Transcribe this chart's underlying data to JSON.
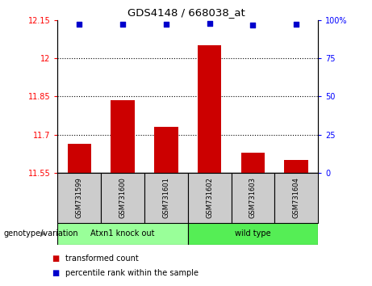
{
  "title": "GDS4148 / 668038_at",
  "samples": [
    "GSM731599",
    "GSM731600",
    "GSM731601",
    "GSM731602",
    "GSM731603",
    "GSM731604"
  ],
  "bar_values": [
    11.665,
    11.835,
    11.73,
    12.05,
    11.63,
    11.6
  ],
  "scatter_values": [
    97,
    97.5,
    97,
    98,
    96.5,
    97
  ],
  "ylim_left": [
    11.55,
    12.15
  ],
  "ylim_right": [
    0,
    100
  ],
  "yticks_left": [
    11.55,
    11.7,
    11.85,
    12.0,
    12.15
  ],
  "yticks_right": [
    0,
    25,
    50,
    75,
    100
  ],
  "ytick_labels_left": [
    "11.55",
    "11.7",
    "11.85",
    "12",
    "12.15"
  ],
  "ytick_labels_right": [
    "0",
    "25",
    "50",
    "75",
    "100%"
  ],
  "hlines": [
    11.7,
    11.85,
    12.0
  ],
  "bar_color": "#cc0000",
  "scatter_color": "#0000cc",
  "group1_label": "Atxn1 knock out",
  "group2_label": "wild type",
  "group1_color": "#99ff99",
  "group2_color": "#55ee55",
  "group1_indices": [
    0,
    1,
    2
  ],
  "group2_indices": [
    3,
    4,
    5
  ],
  "genotype_label": "genotype/variation",
  "legend_bar_label": "transformed count",
  "legend_scatter_label": "percentile rank within the sample",
  "tick_bg_color": "#cccccc",
  "bar_bottom": 11.55
}
